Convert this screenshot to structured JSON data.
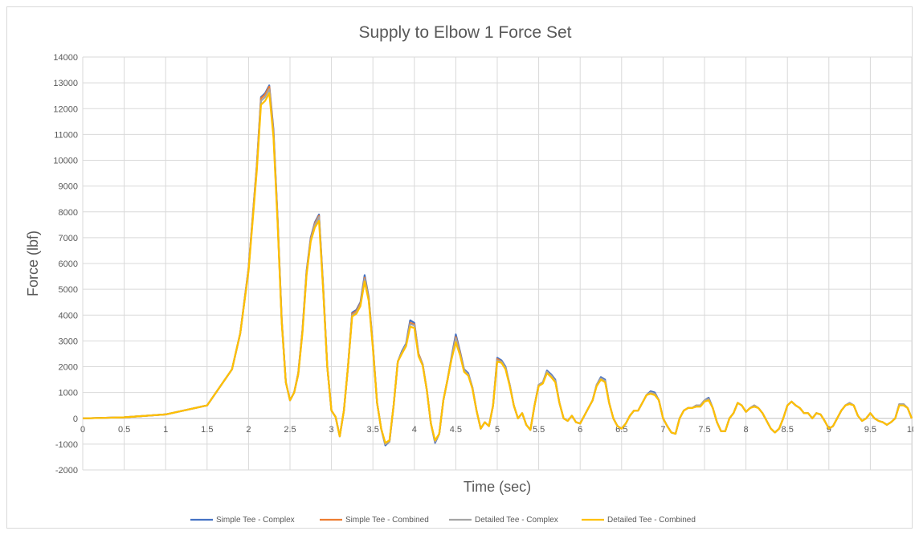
{
  "chart_data": {
    "type": "line",
    "title": "Supply to Elbow 1 Force Set",
    "xlabel": "Time (sec)",
    "ylabel": "Force (lbf)",
    "xlim": [
      0,
      10
    ],
    "ylim": [
      -2000,
      14000
    ],
    "x_ticks": [
      "0",
      "0.5",
      "1",
      "1.5",
      "2",
      "2.5",
      "3",
      "3.5",
      "4",
      "4.5",
      "5",
      "5.5",
      "6",
      "6.5",
      "7",
      "7.5",
      "8",
      "8.5",
      "9",
      "9.5",
      "10"
    ],
    "y_ticks": [
      "-2000",
      "-1000",
      "0",
      "1000",
      "2000",
      "3000",
      "4000",
      "5000",
      "6000",
      "7000",
      "8000",
      "9000",
      "10000",
      "11000",
      "12000",
      "13000",
      "14000"
    ],
    "grid": true,
    "legend_position": "bottom",
    "x": [
      0,
      0.5,
      1.0,
      1.5,
      1.8,
      1.9,
      2.0,
      2.1,
      2.15,
      2.2,
      2.25,
      2.3,
      2.35,
      2.4,
      2.45,
      2.5,
      2.55,
      2.6,
      2.65,
      2.7,
      2.75,
      2.8,
      2.85,
      2.9,
      2.95,
      3.0,
      3.05,
      3.1,
      3.15,
      3.2,
      3.25,
      3.3,
      3.35,
      3.4,
      3.45,
      3.5,
      3.55,
      3.6,
      3.65,
      3.7,
      3.75,
      3.8,
      3.85,
      3.9,
      3.95,
      4.0,
      4.05,
      4.1,
      4.15,
      4.2,
      4.25,
      4.3,
      4.35,
      4.4,
      4.45,
      4.5,
      4.55,
      4.6,
      4.65,
      4.7,
      4.75,
      4.8,
      4.85,
      4.9,
      4.95,
      5.0,
      5.05,
      5.1,
      5.15,
      5.2,
      5.25,
      5.3,
      5.35,
      5.4,
      5.45,
      5.5,
      5.55,
      5.6,
      5.65,
      5.7,
      5.75,
      5.8,
      5.85,
      5.9,
      5.95,
      6.0,
      6.05,
      6.1,
      6.15,
      6.2,
      6.25,
      6.3,
      6.35,
      6.4,
      6.45,
      6.5,
      6.55,
      6.6,
      6.65,
      6.7,
      6.75,
      6.8,
      6.85,
      6.9,
      6.95,
      7.0,
      7.05,
      7.1,
      7.15,
      7.2,
      7.25,
      7.3,
      7.35,
      7.4,
      7.45,
      7.5,
      7.55,
      7.6,
      7.65,
      7.7,
      7.75,
      7.8,
      7.85,
      7.9,
      7.95,
      8.0,
      8.05,
      8.1,
      8.15,
      8.2,
      8.25,
      8.3,
      8.35,
      8.4,
      8.45,
      8.5,
      8.55,
      8.6,
      8.65,
      8.7,
      8.75,
      8.8,
      8.85,
      8.9,
      8.95,
      9.0,
      9.05,
      9.1,
      9.15,
      9.2,
      9.25,
      9.3,
      9.35,
      9.4,
      9.45,
      9.5,
      9.55,
      9.6,
      9.65,
      9.7,
      9.75,
      9.8,
      9.85,
      9.9,
      9.95,
      10.0
    ],
    "series": [
      {
        "name": "Simple Tee - Complex",
        "color": "#4472c4",
        "values": [
          0,
          40,
          150,
          500,
          1900,
          3300,
          5800,
          9800,
          12450,
          12600,
          12900,
          11200,
          7800,
          3800,
          1400,
          700,
          1000,
          1750,
          3400,
          5700,
          7000,
          7600,
          7900,
          5100,
          2000,
          300,
          50,
          -700,
          300,
          2000,
          4100,
          4200,
          4500,
          5550,
          4700,
          2800,
          600,
          -400,
          -1050,
          -900,
          500,
          2200,
          2600,
          2900,
          3800,
          3700,
          2500,
          2100,
          1100,
          -200,
          -950,
          -600,
          700,
          1500,
          2400,
          3250,
          2600,
          1900,
          1750,
          1200,
          300,
          -400,
          -150,
          -300,
          500,
          2350,
          2250,
          2000,
          1300,
          500,
          0,
          200,
          -250,
          -450,
          500,
          1300,
          1400,
          1850,
          1700,
          1500,
          600,
          0,
          -100,
          100,
          -150,
          -200,
          100,
          400,
          700,
          1300,
          1600,
          1500,
          600,
          0,
          -300,
          -400,
          -200,
          100,
          300,
          300,
          600,
          900,
          1050,
          1000,
          700,
          0,
          -300,
          -550,
          -600,
          0,
          300,
          400,
          400,
          500,
          500,
          700,
          800,
          400,
          -150,
          -500,
          -500,
          0,
          200,
          600,
          500,
          250,
          400,
          500,
          400,
          200,
          -100,
          -400,
          -550,
          -400,
          0,
          500,
          650,
          500,
          400,
          200,
          200,
          0,
          200,
          150,
          -100,
          -400,
          -300,
          0,
          300,
          500,
          600,
          500,
          100,
          -100,
          0,
          200,
          0,
          -100,
          -150,
          -250,
          -150,
          0,
          550,
          550,
          400,
          0
        ]
      },
      {
        "name": "Simple Tee - Combined",
        "color": "#ed7d31",
        "values": [
          0,
          40,
          150,
          500,
          1900,
          3300,
          5800,
          9800,
          12400,
          12550,
          12850,
          11100,
          7750,
          3800,
          1400,
          700,
          1000,
          1750,
          3400,
          5650,
          6950,
          7550,
          7850,
          5050,
          2000,
          300,
          50,
          -700,
          300,
          2000,
          4050,
          4150,
          4450,
          5450,
          4650,
          2800,
          600,
          -400,
          -1000,
          -900,
          500,
          2200,
          2550,
          2850,
          3700,
          3650,
          2500,
          2100,
          1100,
          -200,
          -900,
          -600,
          700,
          1500,
          2350,
          3150,
          2550,
          1850,
          1700,
          1200,
          300,
          -400,
          -150,
          -300,
          500,
          2300,
          2200,
          1950,
          1300,
          500,
          0,
          200,
          -250,
          -450,
          500,
          1300,
          1400,
          1800,
          1650,
          1450,
          600,
          0,
          -100,
          100,
          -150,
          -200,
          100,
          400,
          700,
          1300,
          1550,
          1450,
          600,
          0,
          -300,
          -400,
          -200,
          100,
          300,
          300,
          600,
          900,
          1000,
          950,
          700,
          0,
          -300,
          -550,
          -600,
          0,
          300,
          400,
          400,
          500,
          500,
          700,
          750,
          400,
          -150,
          -500,
          -500,
          0,
          200,
          600,
          500,
          250,
          400,
          500,
          400,
          200,
          -100,
          -400,
          -550,
          -400,
          0,
          500,
          650,
          500,
          400,
          200,
          200,
          0,
          200,
          150,
          -100,
          -400,
          -300,
          0,
          300,
          500,
          600,
          500,
          100,
          -100,
          0,
          200,
          0,
          -100,
          -150,
          -250,
          -150,
          0,
          550,
          550,
          400,
          0
        ]
      },
      {
        "name": "Detailed Tee - Complex",
        "color": "#a5a5a5",
        "values": [
          0,
          40,
          150,
          500,
          1900,
          3300,
          5750,
          9700,
          12300,
          12450,
          12750,
          11000,
          7700,
          3750,
          1400,
          700,
          1000,
          1700,
          3350,
          5600,
          6900,
          7500,
          7800,
          5000,
          2000,
          300,
          50,
          -700,
          300,
          2000,
          4000,
          4100,
          4400,
          5400,
          4600,
          2750,
          600,
          -400,
          -1000,
          -900,
          500,
          2200,
          2550,
          2850,
          3650,
          3600,
          2450,
          2100,
          1100,
          -200,
          -900,
          -600,
          700,
          1500,
          2350,
          3100,
          2500,
          1850,
          1700,
          1200,
          300,
          -400,
          -150,
          -300,
          500,
          2250,
          2200,
          1950,
          1300,
          500,
          0,
          200,
          -250,
          -450,
          500,
          1300,
          1400,
          1800,
          1650,
          1450,
          600,
          0,
          -100,
          100,
          -150,
          -200,
          100,
          400,
          700,
          1300,
          1550,
          1450,
          600,
          0,
          -300,
          -400,
          -200,
          100,
          300,
          300,
          600,
          900,
          1000,
          950,
          700,
          0,
          -300,
          -550,
          -600,
          0,
          300,
          400,
          400,
          500,
          500,
          700,
          750,
          400,
          -150,
          -500,
          -500,
          0,
          200,
          600,
          500,
          250,
          400,
          500,
          400,
          200,
          -100,
          -400,
          -550,
          -400,
          0,
          500,
          650,
          500,
          400,
          200,
          200,
          0,
          200,
          150,
          -100,
          -400,
          -300,
          0,
          300,
          500,
          600,
          500,
          100,
          -100,
          0,
          200,
          0,
          -100,
          -150,
          -250,
          -150,
          0,
          550,
          550,
          400,
          0
        ]
      },
      {
        "name": "Detailed Tee - Combined",
        "color": "#ffc000",
        "values": [
          0,
          40,
          150,
          500,
          1900,
          3300,
          5700,
          9600,
          12150,
          12300,
          12600,
          10900,
          7600,
          3700,
          1400,
          700,
          1000,
          1700,
          3300,
          5550,
          6850,
          7400,
          7650,
          4950,
          2000,
          300,
          50,
          -700,
          300,
          2000,
          3950,
          4050,
          4350,
          5300,
          4550,
          2700,
          600,
          -400,
          -950,
          -850,
          500,
          2200,
          2500,
          2800,
          3550,
          3500,
          2400,
          2050,
          1100,
          -200,
          -850,
          -600,
          700,
          1500,
          2300,
          2950,
          2450,
          1800,
          1650,
          1150,
          300,
          -400,
          -150,
          -300,
          500,
          2200,
          2150,
          1900,
          1250,
          500,
          0,
          200,
          -250,
          -450,
          500,
          1250,
          1350,
          1750,
          1600,
          1400,
          600,
          0,
          -100,
          100,
          -150,
          -200,
          100,
          400,
          700,
          1250,
          1500,
          1400,
          600,
          0,
          -300,
          -400,
          -200,
          100,
          300,
          300,
          600,
          900,
          950,
          900,
          700,
          0,
          -300,
          -550,
          -600,
          0,
          300,
          400,
          400,
          450,
          450,
          650,
          700,
          400,
          -150,
          -500,
          -500,
          0,
          200,
          600,
          500,
          250,
          400,
          450,
          400,
          200,
          -100,
          -400,
          -550,
          -400,
          0,
          500,
          650,
          500,
          400,
          200,
          200,
          0,
          200,
          150,
          -100,
          -400,
          -300,
          0,
          300,
          500,
          550,
          500,
          100,
          -100,
          0,
          200,
          0,
          -100,
          -150,
          -250,
          -150,
          0,
          500,
          500,
          400,
          0
        ]
      }
    ]
  }
}
